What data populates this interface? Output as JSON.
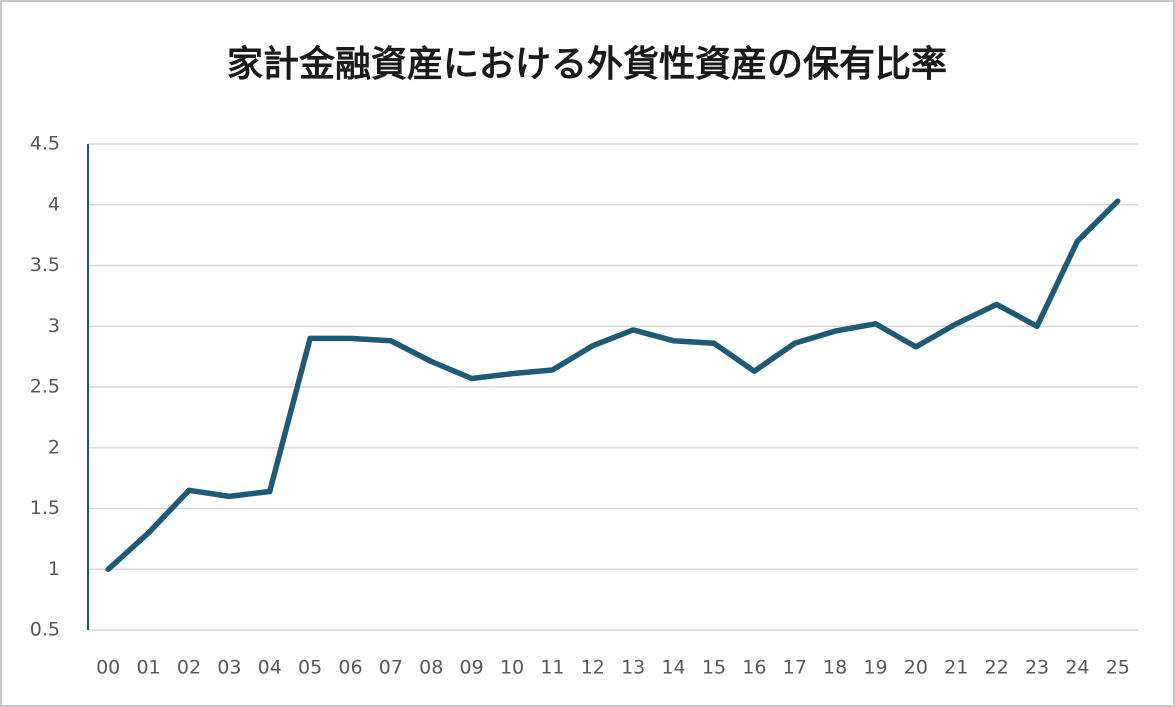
{
  "chart_data": {
    "type": "line",
    "title": "家計金融資産における外貨性資産の保有比率",
    "categories": [
      "00",
      "01",
      "02",
      "03",
      "04",
      "05",
      "06",
      "07",
      "08",
      "09",
      "10",
      "11",
      "12",
      "13",
      "14",
      "15",
      "16",
      "17",
      "18",
      "19",
      "20",
      "21",
      "22",
      "23",
      "24",
      "25"
    ],
    "values": [
      1.0,
      1.3,
      1.65,
      1.6,
      1.64,
      2.9,
      2.9,
      2.88,
      2.71,
      2.57,
      2.61,
      2.64,
      2.84,
      2.97,
      2.88,
      2.86,
      2.63,
      2.86,
      2.96,
      3.02,
      2.83,
      3.02,
      3.18,
      3.0,
      3.7,
      4.03
    ],
    "color": "#1d5a78",
    "ylim": [
      0.5,
      4.5
    ],
    "yticks": [
      0.5,
      1,
      1.5,
      2,
      2.5,
      3,
      3.5,
      4,
      4.5
    ],
    "grid": true
  }
}
